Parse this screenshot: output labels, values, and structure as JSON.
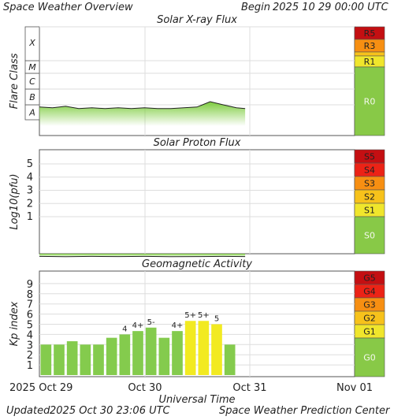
{
  "header": {
    "title": "Space Weather Overview",
    "begin_label": "Begin",
    "begin_value": "2025 10 29 00:00 UTC"
  },
  "footer": {
    "updated_label": "Updated",
    "updated_value": "2025 Oct 30 23:06 UTC",
    "credit": "Space Weather Prediction Center"
  },
  "colors": {
    "scale_green": "#88c947",
    "scale_yellow": "#f0e62c",
    "scale_gold": "#f7c21b",
    "scale_orange": "#f78f12",
    "scale_red": "#ec2316",
    "scale_darkred": "#c40f12",
    "kp_green": "#84cb4d",
    "kp_yellow": "#f2ea21",
    "flux_green": "#7dcc3e",
    "grid": "#dddddd"
  },
  "chart_data": [
    {
      "type": "area",
      "title": "Solar X-ray Flux",
      "ylabel": "Flare Class",
      "y_tick_labels": [
        "A",
        "B",
        "C",
        "M",
        "X"
      ],
      "ylim": [
        "A",
        "X"
      ],
      "x_tick_labels": [
        "2025 Oct 29",
        "Oct 30",
        "Oct 31",
        "Nov 01"
      ],
      "xlim": [
        "2025-10-29",
        "2025-11-01"
      ],
      "grid": true,
      "series": [
        {
          "x": [
            "2025-10-29 00:00",
            "2025-10-29 03:00",
            "2025-10-29 06:00",
            "2025-10-29 09:00",
            "2025-10-29 12:00",
            "2025-10-29 15:00",
            "2025-10-29 18:00",
            "2025-10-29 21:00",
            "2025-10-30 00:00",
            "2025-10-30 03:00",
            "2025-10-30 06:00",
            "2025-10-30 09:00",
            "2025-10-30 12:00",
            "2025-10-30 15:00",
            "2025-10-30 18:00",
            "2025-10-30 21:00",
            "2025-10-30 23:00"
          ],
          "class_level": [
            1.85,
            1.8,
            1.9,
            1.75,
            1.8,
            1.75,
            1.8,
            1.75,
            1.8,
            1.75,
            1.75,
            1.8,
            1.85,
            2.2,
            2.0,
            1.8,
            1.75
          ]
        }
      ],
      "scale": [
        {
          "label": "R5",
          "color": "#c40f12"
        },
        {
          "label": "R3",
          "color": "#f78f12"
        },
        {
          "label": "",
          "color": "#f7c21b"
        },
        {
          "label": "R1",
          "color": "#f0e62c"
        },
        {
          "label": "R0",
          "color": "#88c947"
        }
      ]
    },
    {
      "type": "area",
      "title": "Solar Proton Flux",
      "ylabel": "Log10(pfu)",
      "y_tick_labels": [
        "1",
        "2",
        "3",
        "4",
        "5"
      ],
      "ylim": [
        -1,
        6
      ],
      "grid": true,
      "series": [
        {
          "x": [
            "2025-10-29 00:00",
            "2025-10-29 06:00",
            "2025-10-29 12:00",
            "2025-10-29 18:00",
            "2025-10-30 00:00",
            "2025-10-30 06:00",
            "2025-10-30 12:00",
            "2025-10-30 18:00",
            "2025-10-30 23:00"
          ],
          "log_pfu": [
            -0.4,
            -0.42,
            -0.4,
            -0.41,
            -0.4,
            -0.42,
            -0.41,
            -0.4,
            -0.41
          ]
        }
      ],
      "scale": [
        {
          "label": "S5",
          "color": "#c40f12"
        },
        {
          "label": "S4",
          "color": "#ec2316"
        },
        {
          "label": "S3",
          "color": "#f78f12"
        },
        {
          "label": "S2",
          "color": "#f7c21b"
        },
        {
          "label": "S1",
          "color": "#f0e62c"
        },
        {
          "label": "S0",
          "color": "#88c947"
        }
      ]
    },
    {
      "type": "bar",
      "title": "Geomagnetic Activity",
      "ylabel": "Kp index",
      "y_tick_labels": [
        "1",
        "2",
        "3",
        "4",
        "5",
        "6",
        "7",
        "8",
        "9"
      ],
      "ylim": [
        0,
        10
      ],
      "grid": true,
      "x_tick_labels": [
        "2025 Oct 29",
        "Oct 30",
        "Oct 31",
        "Nov 01"
      ],
      "xlabel": "Universal Time",
      "bars": [
        {
          "kp": 3.0,
          "label": "",
          "color": "#84cb4d"
        },
        {
          "kp": 3.0,
          "label": "",
          "color": "#84cb4d"
        },
        {
          "kp": 3.33,
          "label": "",
          "color": "#84cb4d"
        },
        {
          "kp": 3.0,
          "label": "",
          "color": "#84cb4d"
        },
        {
          "kp": 3.0,
          "label": "",
          "color": "#84cb4d"
        },
        {
          "kp": 3.67,
          "label": "",
          "color": "#84cb4d"
        },
        {
          "kp": 4.0,
          "label": "4",
          "color": "#84cb4d"
        },
        {
          "kp": 4.33,
          "label": "4+",
          "color": "#84cb4d"
        },
        {
          "kp": 4.67,
          "label": "5-",
          "color": "#84cb4d"
        },
        {
          "kp": 3.67,
          "label": "",
          "color": "#84cb4d"
        },
        {
          "kp": 4.33,
          "label": "4+",
          "color": "#84cb4d"
        },
        {
          "kp": 5.33,
          "label": "5+",
          "color": "#f2ea21"
        },
        {
          "kp": 5.33,
          "label": "5+",
          "color": "#f2ea21"
        },
        {
          "kp": 5.0,
          "label": "5",
          "color": "#f2ea21"
        },
        {
          "kp": 3.0,
          "label": "",
          "color": "#84cb4d"
        }
      ],
      "scale": [
        {
          "label": "G5",
          "color": "#c40f12"
        },
        {
          "label": "G4",
          "color": "#ec2316"
        },
        {
          "label": "G3",
          "color": "#f78f12"
        },
        {
          "label": "G2",
          "color": "#f7c21b"
        },
        {
          "label": "G1",
          "color": "#f0e62c"
        },
        {
          "label": "G0",
          "color": "#88c947"
        }
      ]
    }
  ]
}
